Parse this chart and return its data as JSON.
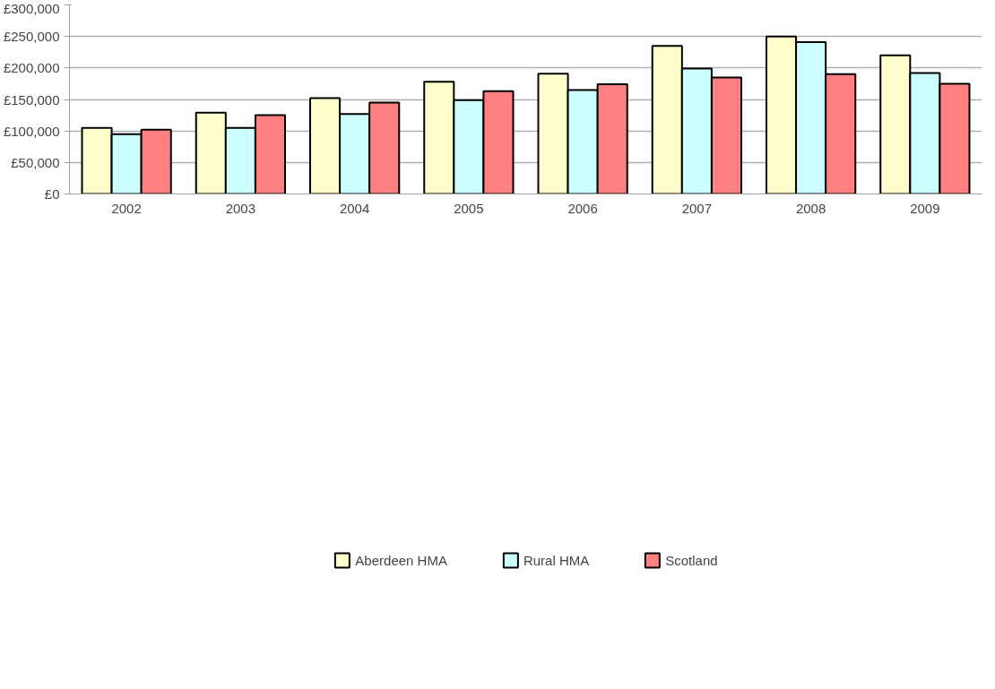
{
  "chart_data": {
    "type": "bar",
    "categories": [
      "2002",
      "2003",
      "2004",
      "2005",
      "2006",
      "2007",
      "2008",
      "2009"
    ],
    "series": [
      {
        "name": "Aberdeen HMA",
        "color": "#ffffcc",
        "values": [
          105000,
          129000,
          152000,
          178000,
          191000,
          235000,
          250000,
          220000
        ]
      },
      {
        "name": "Rural HMA",
        "color": "#ccffff",
        "values": [
          95000,
          105000,
          127000,
          149000,
          165000,
          199000,
          241000,
          192000
        ]
      },
      {
        "name": "Scotland",
        "color": "#ff8080",
        "values": [
          102000,
          125000,
          145000,
          163000,
          174000,
          185000,
          190000,
          175000
        ]
      }
    ],
    "ylim": [
      0,
      300000
    ],
    "yticks": [
      {
        "value": 0,
        "label": "£0"
      },
      {
        "value": 50000,
        "label": "£50,000"
      },
      {
        "value": 100000,
        "label": "£100,000"
      },
      {
        "value": 150000,
        "label": "£150,000"
      },
      {
        "value": 200000,
        "label": "£200,000"
      },
      {
        "value": 250000,
        "label": "£250,000"
      },
      {
        "value": 300000,
        "label": "£300,000"
      }
    ],
    "grid": "y",
    "legend": "bottom"
  }
}
